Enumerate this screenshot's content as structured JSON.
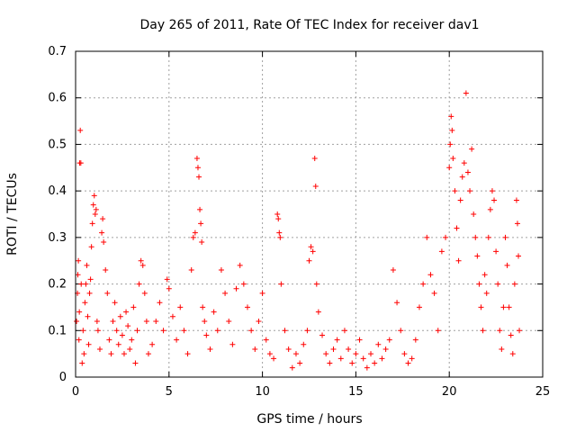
{
  "chart_data": {
    "type": "scatter",
    "title": "Day 265 of 2011, Rate Of TEC Index for receiver dav1",
    "xlabel": "GPS time / hours",
    "ylabel": "ROTI / TECUs",
    "xlim": [
      0,
      25
    ],
    "ylim": [
      0,
      0.7
    ],
    "x_ticks": [
      0,
      5,
      10,
      15,
      20,
      25
    ],
    "y_ticks": [
      0,
      0.1,
      0.2,
      0.3,
      0.4,
      0.5,
      0.6,
      0.7
    ],
    "x_tick_labels": [
      "0",
      "5",
      "10",
      "15",
      "20",
      "25"
    ],
    "y_tick_labels": [
      "0",
      "0.1",
      "0.2",
      "0.3",
      "0.4",
      "0.5",
      "0.6",
      "0.7"
    ],
    "grid": true,
    "marker": "plus",
    "color": "#ff0000",
    "series": [
      {
        "points": [
          [
            0.05,
            0.12
          ],
          [
            0.1,
            0.18
          ],
          [
            0.12,
            0.22
          ],
          [
            0.15,
            0.25
          ],
          [
            0.18,
            0.08
          ],
          [
            0.2,
            0.14
          ],
          [
            0.22,
            0.46
          ],
          [
            0.25,
            0.53
          ],
          [
            0.28,
            0.46
          ],
          [
            0.3,
            0.2
          ],
          [
            0.35,
            0.03
          ],
          [
            0.4,
            0.1
          ],
          [
            0.45,
            0.05
          ],
          [
            0.5,
            0.16
          ],
          [
            0.55,
            0.2
          ],
          [
            0.6,
            0.24
          ],
          [
            0.65,
            0.13
          ],
          [
            0.7,
            0.07
          ],
          [
            0.75,
            0.18
          ],
          [
            0.8,
            0.21
          ],
          [
            0.85,
            0.28
          ],
          [
            0.9,
            0.33
          ],
          [
            0.95,
            0.37
          ],
          [
            1.0,
            0.39
          ],
          [
            1.05,
            0.35
          ],
          [
            1.1,
            0.36
          ],
          [
            1.15,
            0.12
          ],
          [
            1.2,
            0.1
          ],
          [
            1.3,
            0.06
          ],
          [
            1.4,
            0.31
          ],
          [
            1.45,
            0.34
          ],
          [
            1.5,
            0.29
          ],
          [
            1.6,
            0.23
          ],
          [
            1.7,
            0.18
          ],
          [
            1.8,
            0.08
          ],
          [
            1.9,
            0.05
          ],
          [
            2.0,
            0.12
          ],
          [
            2.1,
            0.16
          ],
          [
            2.2,
            0.1
          ],
          [
            2.3,
            0.07
          ],
          [
            2.4,
            0.13
          ],
          [
            2.5,
            0.09
          ],
          [
            2.6,
            0.05
          ],
          [
            2.7,
            0.14
          ],
          [
            2.8,
            0.11
          ],
          [
            2.9,
            0.06
          ],
          [
            3.0,
            0.08
          ],
          [
            3.1,
            0.15
          ],
          [
            3.2,
            0.03
          ],
          [
            3.3,
            0.1
          ],
          [
            3.4,
            0.2
          ],
          [
            3.5,
            0.25
          ],
          [
            3.6,
            0.24
          ],
          [
            3.7,
            0.18
          ],
          [
            3.8,
            0.12
          ],
          [
            3.9,
            0.05
          ],
          [
            4.1,
            0.07
          ],
          [
            4.3,
            0.12
          ],
          [
            4.5,
            0.16
          ],
          [
            4.7,
            0.1
          ],
          [
            4.9,
            0.21
          ],
          [
            5.0,
            0.19
          ],
          [
            5.2,
            0.13
          ],
          [
            5.4,
            0.08
          ],
          [
            5.6,
            0.15
          ],
          [
            5.8,
            0.1
          ],
          [
            6.0,
            0.05
          ],
          [
            6.2,
            0.23
          ],
          [
            6.3,
            0.3
          ],
          [
            6.4,
            0.31
          ],
          [
            6.5,
            0.47
          ],
          [
            6.55,
            0.45
          ],
          [
            6.6,
            0.43
          ],
          [
            6.65,
            0.36
          ],
          [
            6.7,
            0.33
          ],
          [
            6.75,
            0.29
          ],
          [
            6.8,
            0.15
          ],
          [
            6.9,
            0.12
          ],
          [
            7.0,
            0.09
          ],
          [
            7.2,
            0.06
          ],
          [
            7.4,
            0.14
          ],
          [
            7.6,
            0.1
          ],
          [
            7.8,
            0.23
          ],
          [
            8.0,
            0.18
          ],
          [
            8.2,
            0.12
          ],
          [
            8.4,
            0.07
          ],
          [
            8.6,
            0.19
          ],
          [
            8.8,
            0.24
          ],
          [
            9.0,
            0.2
          ],
          [
            9.2,
            0.15
          ],
          [
            9.4,
            0.1
          ],
          [
            9.6,
            0.06
          ],
          [
            9.8,
            0.12
          ],
          [
            10.0,
            0.18
          ],
          [
            10.2,
            0.08
          ],
          [
            10.4,
            0.05
          ],
          [
            10.6,
            0.04
          ],
          [
            10.8,
            0.35
          ],
          [
            10.85,
            0.34
          ],
          [
            10.9,
            0.31
          ],
          [
            10.95,
            0.3
          ],
          [
            11.0,
            0.2
          ],
          [
            11.2,
            0.1
          ],
          [
            11.4,
            0.06
          ],
          [
            11.6,
            0.02
          ],
          [
            11.8,
            0.05
          ],
          [
            12.0,
            0.03
          ],
          [
            12.2,
            0.07
          ],
          [
            12.4,
            0.1
          ],
          [
            12.5,
            0.25
          ],
          [
            12.6,
            0.28
          ],
          [
            12.7,
            0.27
          ],
          [
            12.8,
            0.47
          ],
          [
            12.85,
            0.41
          ],
          [
            12.9,
            0.2
          ],
          [
            13.0,
            0.14
          ],
          [
            13.2,
            0.09
          ],
          [
            13.4,
            0.05
          ],
          [
            13.6,
            0.03
          ],
          [
            13.8,
            0.06
          ],
          [
            14.0,
            0.08
          ],
          [
            14.2,
            0.04
          ],
          [
            14.4,
            0.1
          ],
          [
            14.6,
            0.06
          ],
          [
            14.8,
            0.03
          ],
          [
            15.0,
            0.05
          ],
          [
            15.2,
            0.08
          ],
          [
            15.4,
            0.04
          ],
          [
            15.6,
            0.02
          ],
          [
            15.8,
            0.05
          ],
          [
            16.0,
            0.03
          ],
          [
            16.2,
            0.07
          ],
          [
            16.4,
            0.04
          ],
          [
            16.6,
            0.06
          ],
          [
            16.8,
            0.08
          ],
          [
            17.0,
            0.23
          ],
          [
            17.2,
            0.16
          ],
          [
            17.4,
            0.1
          ],
          [
            17.6,
            0.05
          ],
          [
            17.8,
            0.03
          ],
          [
            18.0,
            0.04
          ],
          [
            18.2,
            0.08
          ],
          [
            18.4,
            0.15
          ],
          [
            18.6,
            0.2
          ],
          [
            18.8,
            0.3
          ],
          [
            19.0,
            0.22
          ],
          [
            19.2,
            0.18
          ],
          [
            19.4,
            0.1
          ],
          [
            19.6,
            0.27
          ],
          [
            19.8,
            0.3
          ],
          [
            20.0,
            0.45
          ],
          [
            20.05,
            0.5
          ],
          [
            20.1,
            0.56
          ],
          [
            20.15,
            0.53
          ],
          [
            20.2,
            0.47
          ],
          [
            20.3,
            0.4
          ],
          [
            20.4,
            0.32
          ],
          [
            20.5,
            0.25
          ],
          [
            20.6,
            0.38
          ],
          [
            20.7,
            0.43
          ],
          [
            20.8,
            0.46
          ],
          [
            20.9,
            0.61
          ],
          [
            21.0,
            0.44
          ],
          [
            21.1,
            0.4
          ],
          [
            21.2,
            0.49
          ],
          [
            21.3,
            0.35
          ],
          [
            21.4,
            0.3
          ],
          [
            21.5,
            0.26
          ],
          [
            21.6,
            0.2
          ],
          [
            21.7,
            0.15
          ],
          [
            21.8,
            0.1
          ],
          [
            21.9,
            0.22
          ],
          [
            22.0,
            0.18
          ],
          [
            22.1,
            0.3
          ],
          [
            22.2,
            0.36
          ],
          [
            22.3,
            0.4
          ],
          [
            22.4,
            0.38
          ],
          [
            22.5,
            0.27
          ],
          [
            22.6,
            0.2
          ],
          [
            22.7,
            0.1
          ],
          [
            22.8,
            0.06
          ],
          [
            22.9,
            0.15
          ],
          [
            23.0,
            0.3
          ],
          [
            23.1,
            0.24
          ],
          [
            23.2,
            0.15
          ],
          [
            23.3,
            0.09
          ],
          [
            23.4,
            0.05
          ],
          [
            23.5,
            0.2
          ],
          [
            23.6,
            0.38
          ],
          [
            23.65,
            0.33
          ],
          [
            23.7,
            0.26
          ],
          [
            23.75,
            0.1
          ]
        ]
      }
    ]
  }
}
